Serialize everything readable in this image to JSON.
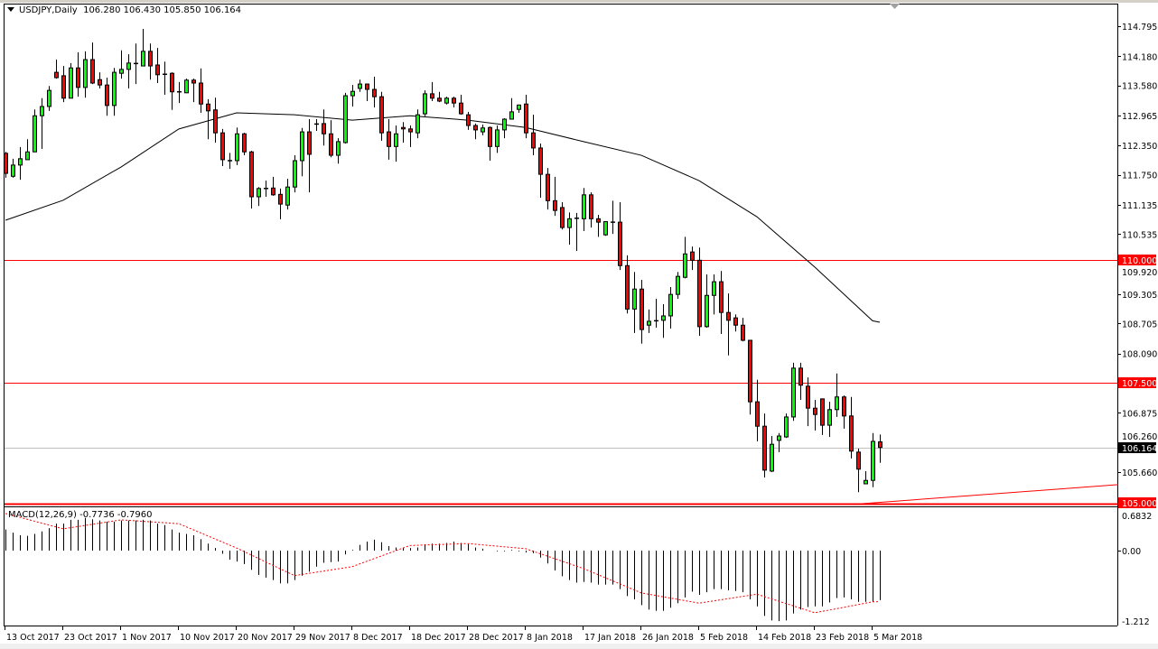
{
  "header": {
    "symbol_timeframe": "USDJPY,Daily",
    "ohlc_readout": "106.280 106.430 105.850 106.164"
  },
  "macd_panel": {
    "label": "MACD(12,26,9) -0.7736 -0.7960",
    "axis_labels": [
      "0.6832",
      "0.00",
      "-1.212"
    ]
  },
  "colors": {
    "bull_candle": "#00ff00",
    "bear_candle": "#ff0000",
    "candle_outline": "#000000",
    "ma_line": "#000000",
    "level_line": "#ff0000",
    "current_price_line": "#c0c0c0",
    "macd_histogram": "#000000",
    "macd_signal": "#ff0000"
  },
  "chart_data": {
    "type": "candlestick",
    "symbol": "USDJPY",
    "timeframe": "Daily",
    "grid": false,
    "ylim": [
      105.0,
      114.9
    ],
    "y_ticks": [
      "114.795",
      "114.180",
      "113.580",
      "112.965",
      "112.350",
      "111.750",
      "111.135",
      "110.535",
      "109.920",
      "109.305",
      "108.705",
      "108.090",
      "106.875",
      "106.260",
      "105.660"
    ],
    "x_tick_labels": [
      "13 Oct 2017",
      "23 Oct 2017",
      "1 Nov 2017",
      "10 Nov 2017",
      "20 Nov 2017",
      "29 Nov 2017",
      "8 Dec 2017",
      "18 Dec 2017",
      "28 Dec 2017",
      "8 Jan 2018",
      "17 Jan 2018",
      "26 Jan 2018",
      "5 Feb 2018",
      "14 Feb 2018",
      "23 Feb 2018",
      "5 Mar 2018"
    ],
    "x_tick_every_bars": 8,
    "ohlc": [
      [
        112.19,
        112.22,
        111.69,
        111.78
      ],
      [
        111.72,
        112.08,
        111.69,
        111.95
      ],
      [
        111.95,
        112.32,
        111.65,
        112.08
      ],
      [
        112.06,
        112.48,
        112.06,
        112.22
      ],
      [
        112.22,
        113.09,
        112.22,
        112.96
      ],
      [
        112.96,
        113.32,
        112.28,
        113.15
      ],
      [
        113.15,
        113.57,
        113.06,
        113.48
      ],
      [
        113.85,
        114.11,
        113.72,
        113.74
      ],
      [
        113.78,
        113.98,
        113.24,
        113.32
      ],
      [
        113.32,
        114.04,
        113.32,
        113.94
      ],
      [
        113.94,
        114.26,
        113.35,
        113.54
      ],
      [
        113.54,
        114.28,
        113.33,
        114.11
      ],
      [
        114.11,
        114.46,
        113.61,
        113.63
      ],
      [
        113.7,
        113.85,
        113.52,
        113.59
      ],
      [
        113.59,
        113.74,
        112.96,
        113.17
      ],
      [
        113.17,
        113.94,
        112.96,
        113.85
      ],
      [
        113.83,
        114.3,
        113.72,
        113.91
      ],
      [
        113.91,
        114.22,
        113.52,
        114.04
      ],
      [
        114.02,
        114.44,
        113.61,
        114.03
      ],
      [
        113.98,
        114.74,
        113.98,
        114.28
      ],
      [
        114.28,
        114.44,
        113.7,
        113.98
      ],
      [
        114.0,
        114.35,
        113.63,
        113.8
      ],
      [
        113.81,
        114.07,
        113.39,
        113.79
      ],
      [
        113.83,
        113.85,
        113.08,
        113.45
      ],
      [
        113.45,
        113.65,
        113.22,
        113.44
      ],
      [
        113.43,
        113.72,
        113.43,
        113.69
      ],
      [
        113.69,
        113.72,
        113.24,
        113.63
      ],
      [
        113.63,
        113.93,
        113.02,
        113.2
      ],
      [
        113.2,
        113.3,
        112.48,
        113.06
      ],
      [
        113.08,
        113.33,
        112.41,
        112.61
      ],
      [
        112.61,
        112.69,
        111.93,
        112.06
      ],
      [
        112.04,
        112.2,
        111.87,
        112.03
      ],
      [
        112.04,
        112.72,
        111.95,
        112.59
      ],
      [
        112.59,
        112.61,
        112.15,
        112.22
      ],
      [
        112.22,
        112.24,
        111.06,
        111.3
      ],
      [
        111.3,
        111.5,
        111.11,
        111.47
      ],
      [
        111.47,
        111.63,
        111.3,
        111.46
      ],
      [
        111.48,
        111.71,
        111.32,
        111.34
      ],
      [
        111.35,
        111.47,
        110.84,
        111.15
      ],
      [
        111.13,
        111.67,
        111.04,
        111.5
      ],
      [
        111.5,
        112.15,
        111.39,
        112.04
      ],
      [
        112.04,
        112.71,
        111.72,
        112.63
      ],
      [
        112.63,
        112.89,
        111.39,
        112.17
      ],
      [
        112.78,
        112.89,
        112.65,
        112.79
      ],
      [
        112.8,
        113.09,
        112.35,
        112.59
      ],
      [
        112.59,
        112.87,
        112.11,
        112.15
      ],
      [
        112.15,
        112.5,
        111.98,
        112.43
      ],
      [
        112.41,
        113.43,
        112.39,
        113.37
      ],
      [
        113.37,
        113.59,
        113.15,
        113.46
      ],
      [
        113.52,
        113.7,
        113.45,
        113.61
      ],
      [
        113.61,
        113.62,
        113.26,
        113.5
      ],
      [
        113.5,
        113.76,
        113.13,
        113.35
      ],
      [
        113.35,
        113.45,
        112.45,
        112.61
      ],
      [
        112.63,
        112.89,
        112.06,
        112.33
      ],
      [
        112.33,
        112.76,
        112.02,
        112.59
      ],
      [
        112.72,
        112.83,
        112.41,
        112.69
      ],
      [
        112.69,
        112.76,
        112.32,
        112.63
      ],
      [
        112.61,
        113.09,
        112.5,
        112.98
      ],
      [
        113.0,
        113.48,
        112.95,
        113.41
      ],
      [
        113.41,
        113.65,
        113.26,
        113.32
      ],
      [
        113.32,
        113.45,
        113.24,
        113.26
      ],
      [
        113.22,
        113.35,
        113.19,
        113.32
      ],
      [
        113.32,
        113.35,
        113.13,
        113.22
      ],
      [
        113.22,
        113.39,
        112.98,
        113.0
      ],
      [
        112.98,
        113.04,
        112.67,
        112.76
      ],
      [
        112.76,
        112.8,
        112.48,
        112.67
      ],
      [
        112.63,
        112.78,
        112.56,
        112.71
      ],
      [
        112.72,
        112.74,
        112.04,
        112.33
      ],
      [
        112.33,
        112.76,
        112.2,
        112.67
      ],
      [
        112.67,
        112.91,
        112.5,
        112.89
      ],
      [
        112.89,
        113.32,
        112.89,
        113.04
      ],
      [
        113.09,
        113.19,
        113.02,
        113.18
      ],
      [
        113.2,
        113.39,
        112.5,
        112.61
      ],
      [
        112.61,
        112.98,
        112.15,
        112.3
      ],
      [
        112.3,
        112.39,
        111.28,
        111.76
      ],
      [
        111.76,
        111.89,
        111.04,
        111.22
      ],
      [
        111.22,
        111.71,
        110.91,
        111.02
      ],
      [
        111.08,
        111.19,
        110.63,
        110.67
      ],
      [
        110.67,
        110.98,
        110.32,
        110.85
      ],
      [
        110.85,
        110.97,
        110.19,
        110.86
      ],
      [
        110.85,
        111.48,
        110.6,
        111.34
      ],
      [
        111.34,
        111.39,
        110.67,
        110.85
      ],
      [
        110.85,
        110.93,
        110.48,
        110.78
      ],
      [
        110.52,
        110.8,
        110.5,
        110.79
      ],
      [
        110.78,
        111.22,
        110.54,
        110.77
      ],
      [
        110.78,
        111.19,
        109.8,
        109.89
      ],
      [
        109.89,
        110.1,
        108.91,
        109.0
      ],
      [
        109.0,
        109.76,
        108.51,
        109.41
      ],
      [
        109.41,
        109.6,
        108.29,
        108.58
      ],
      [
        108.67,
        108.99,
        108.51,
        108.75
      ],
      [
        108.75,
        109.21,
        108.62,
        108.76
      ],
      [
        108.77,
        109.1,
        108.41,
        108.86
      ],
      [
        108.86,
        109.45,
        108.6,
        109.3
      ],
      [
        109.3,
        109.76,
        109.21,
        109.67
      ],
      [
        109.65,
        110.48,
        109.63,
        110.13
      ],
      [
        110.17,
        110.28,
        109.8,
        110.0
      ],
      [
        110.0,
        110.26,
        108.45,
        108.64
      ],
      [
        108.64,
        109.71,
        108.62,
        109.28
      ],
      [
        109.28,
        109.71,
        108.89,
        109.56
      ],
      [
        109.56,
        109.78,
        108.49,
        108.93
      ],
      [
        108.93,
        109.32,
        108.05,
        108.77
      ],
      [
        108.82,
        108.89,
        108.54,
        108.67
      ],
      [
        108.67,
        108.82,
        108.34,
        108.36
      ],
      [
        108.36,
        108.37,
        106.84,
        107.1
      ],
      [
        107.1,
        107.55,
        106.29,
        106.6
      ],
      [
        106.6,
        106.86,
        105.55,
        105.7
      ],
      [
        105.68,
        106.4,
        105.66,
        106.23
      ],
      [
        106.31,
        106.46,
        106.07,
        106.4
      ],
      [
        106.38,
        106.86,
        106.36,
        106.79
      ],
      [
        106.79,
        107.9,
        106.71,
        107.79
      ],
      [
        107.79,
        107.9,
        107.14,
        107.44
      ],
      [
        107.42,
        107.6,
        106.6,
        106.97
      ],
      [
        106.97,
        107.14,
        106.51,
        106.84
      ],
      [
        107.16,
        107.17,
        106.42,
        106.62
      ],
      [
        106.62,
        107.1,
        106.38,
        106.94
      ],
      [
        106.94,
        107.68,
        106.79,
        107.2
      ],
      [
        107.2,
        107.23,
        106.55,
        106.81
      ],
      [
        106.81,
        107.2,
        105.94,
        106.09
      ],
      [
        106.07,
        106.14,
        105.25,
        105.72
      ],
      [
        105.42,
        105.68,
        105.41,
        105.49
      ],
      [
        105.49,
        106.46,
        105.35,
        106.29
      ],
      [
        106.28,
        106.43,
        105.85,
        106.164
      ]
    ],
    "moving_average": {
      "values_at_x_ticks": [
        110.82,
        111.23,
        111.91,
        112.69,
        113.02,
        112.98,
        112.87,
        112.96,
        112.87,
        112.72,
        112.43,
        112.15,
        111.63,
        110.89,
        109.86,
        108.76
      ],
      "last": 108.73
    },
    "horizontal_levels": [
      {
        "price": 110.0,
        "label": "110.000"
      },
      {
        "price": 107.5,
        "label": "107.500"
      },
      {
        "price": 105.0,
        "label": "105.000"
      }
    ],
    "current_price": {
      "price": 106.164,
      "label": "106.164"
    },
    "trendline": {
      "start_bar": 118.5,
      "start_price": 105.01,
      "end_bar": 154,
      "end_price": 105.4
    },
    "macd": {
      "params": "12,26,9",
      "main_value": -0.7736,
      "signal_value": -0.796,
      "ylim": [
        -1.212,
        0.6832
      ],
      "histogram": [
        0.33,
        0.28,
        0.24,
        0.23,
        0.26,
        0.3,
        0.35,
        0.42,
        0.42,
        0.48,
        0.48,
        0.51,
        0.49,
        0.47,
        0.45,
        0.45,
        0.47,
        0.47,
        0.47,
        0.48,
        0.47,
        0.42,
        0.4,
        0.33,
        0.28,
        0.26,
        0.24,
        0.18,
        0.11,
        0.04,
        -0.05,
        -0.14,
        -0.17,
        -0.21,
        -0.3,
        -0.38,
        -0.42,
        -0.46,
        -0.51,
        -0.51,
        -0.46,
        -0.39,
        -0.33,
        -0.25,
        -0.19,
        -0.18,
        -0.17,
        -0.06,
        0.01,
        0.09,
        0.14,
        0.17,
        0.13,
        0.07,
        0.05,
        0.04,
        0.04,
        0.05,
        0.1,
        0.11,
        0.11,
        0.12,
        0.14,
        0.12,
        0.1,
        0.05,
        0.03,
        0.0,
        -0.01,
        -0.01,
        0.01,
        -0.01,
        -0.03,
        -0.04,
        -0.11,
        -0.2,
        -0.31,
        -0.4,
        -0.46,
        -0.5,
        -0.49,
        -0.5,
        -0.53,
        -0.53,
        -0.53,
        -0.6,
        -0.71,
        -0.76,
        -0.85,
        -0.92,
        -0.94,
        -0.94,
        -0.89,
        -0.82,
        -0.73,
        -0.64,
        -0.69,
        -0.65,
        -0.6,
        -0.6,
        -0.62,
        -0.63,
        -0.65,
        -0.76,
        -0.87,
        -1.02,
        -1.09,
        -1.1,
        -1.09,
        -0.98,
        -0.92,
        -0.88,
        -0.87,
        -0.87,
        -0.81,
        -0.74,
        -0.73,
        -0.76,
        -0.8,
        -0.8,
        -0.8,
        -0.7736
      ],
      "signal_at_x_ticks": [
        0.58,
        0.34,
        0.48,
        0.42,
        0.04,
        -0.39,
        -0.25,
        0.08,
        0.11,
        0.03,
        -0.28,
        -0.66,
        -0.82,
        -0.68,
        -0.97,
        -0.8
      ],
      "signal_last": -0.796
    }
  }
}
